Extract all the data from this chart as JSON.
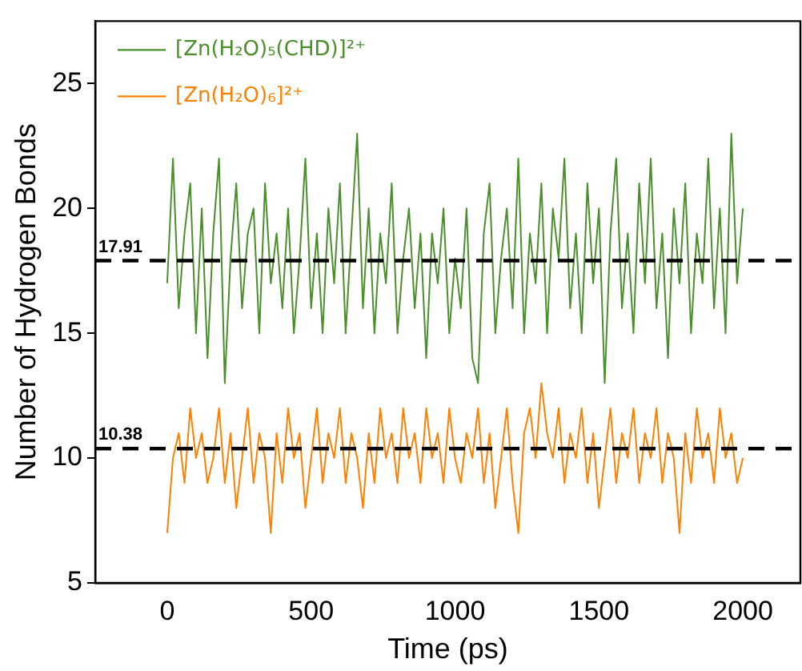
{
  "chart_data": {
    "type": "line",
    "xlabel": "Time (ps)",
    "ylabel": "Number of Hydrogen Bonds",
    "x": [
      0,
      20,
      40,
      60,
      80,
      100,
      120,
      140,
      160,
      180,
      200,
      220,
      240,
      260,
      280,
      300,
      320,
      340,
      360,
      380,
      400,
      420,
      440,
      460,
      480,
      500,
      520,
      540,
      560,
      580,
      600,
      620,
      640,
      660,
      680,
      700,
      720,
      740,
      760,
      780,
      800,
      820,
      840,
      860,
      880,
      900,
      920,
      940,
      960,
      980,
      1000,
      1020,
      1040,
      1060,
      1080,
      1100,
      1120,
      1140,
      1160,
      1180,
      1200,
      1220,
      1240,
      1260,
      1280,
      1300,
      1320,
      1340,
      1360,
      1380,
      1400,
      1420,
      1440,
      1460,
      1480,
      1500,
      1520,
      1540,
      1560,
      1580,
      1600,
      1620,
      1640,
      1660,
      1680,
      1700,
      1720,
      1740,
      1760,
      1780,
      1800,
      1820,
      1840,
      1860,
      1880,
      1900,
      1920,
      1940,
      1960,
      1980,
      2000
    ],
    "series": [
      {
        "name": "[Zn(H₂O)₅(CHD)]²⁺",
        "color": "#4a8f2a",
        "values": [
          17,
          22,
          16,
          19,
          21,
          15,
          20,
          14,
          19,
          22,
          13,
          18,
          21,
          16,
          19,
          20,
          15,
          21,
          17,
          19,
          16,
          20,
          15,
          18,
          22,
          16,
          19,
          15,
          20,
          17,
          21,
          15,
          19,
          23,
          16,
          20,
          15,
          19,
          17,
          21,
          15,
          18,
          20,
          16,
          19,
          14,
          19,
          17,
          20,
          15,
          18,
          16,
          20,
          14,
          13,
          19,
          21,
          15,
          18,
          20,
          16,
          22,
          15,
          19,
          17,
          21,
          15,
          20,
          18,
          22,
          16,
          19,
          15,
          21,
          17,
          20,
          13,
          19,
          22,
          16,
          19,
          15,
          21,
          17,
          22,
          16,
          19,
          14,
          20,
          17,
          21,
          15,
          19,
          17,
          22,
          16,
          20,
          15,
          23,
          17,
          20
        ]
      },
      {
        "name": "[Zn(H₂O)₆]²⁺",
        "color": "#ff8000",
        "values": [
          7,
          10,
          11,
          9,
          12,
          10,
          11,
          9,
          10,
          12,
          9,
          11,
          8,
          10,
          12,
          9,
          11,
          10,
          7,
          11,
          9,
          12,
          10,
          11,
          8,
          10,
          12,
          9,
          11,
          10,
          12,
          9,
          11,
          10,
          8,
          11,
          9,
          12,
          10,
          11,
          9,
          12,
          10,
          11,
          9,
          12,
          10,
          11,
          9,
          12,
          10,
          9,
          11,
          10,
          12,
          9,
          11,
          8,
          10,
          12,
          9,
          7,
          11,
          12,
          10,
          13,
          11,
          10,
          12,
          9,
          11,
          10,
          12,
          9,
          11,
          8,
          10,
          12,
          9,
          11,
          10,
          12,
          9,
          11,
          10,
          12,
          9,
          11,
          10,
          7,
          11,
          9,
          12,
          10,
          11,
          9,
          12,
          10,
          11,
          9,
          10
        ]
      }
    ],
    "xlim": [
      -250,
      2200
    ],
    "xticks": [
      0,
      500,
      1000,
      1500,
      2000
    ],
    "ylim": [
      5,
      27.5
    ],
    "yticks": [
      5,
      10,
      15,
      20,
      25
    ],
    "ref_lines": [
      {
        "axis": "y",
        "value": 17.91,
        "label": "17.91",
        "color": "#000000",
        "line_style": "dashed"
      },
      {
        "axis": "y",
        "value": 10.38,
        "label": "10.38",
        "color": "#000000",
        "line_style": "dashed"
      }
    ],
    "legend": "top left",
    "grid": false,
    "marker": "none",
    "line_style": "solid"
  }
}
